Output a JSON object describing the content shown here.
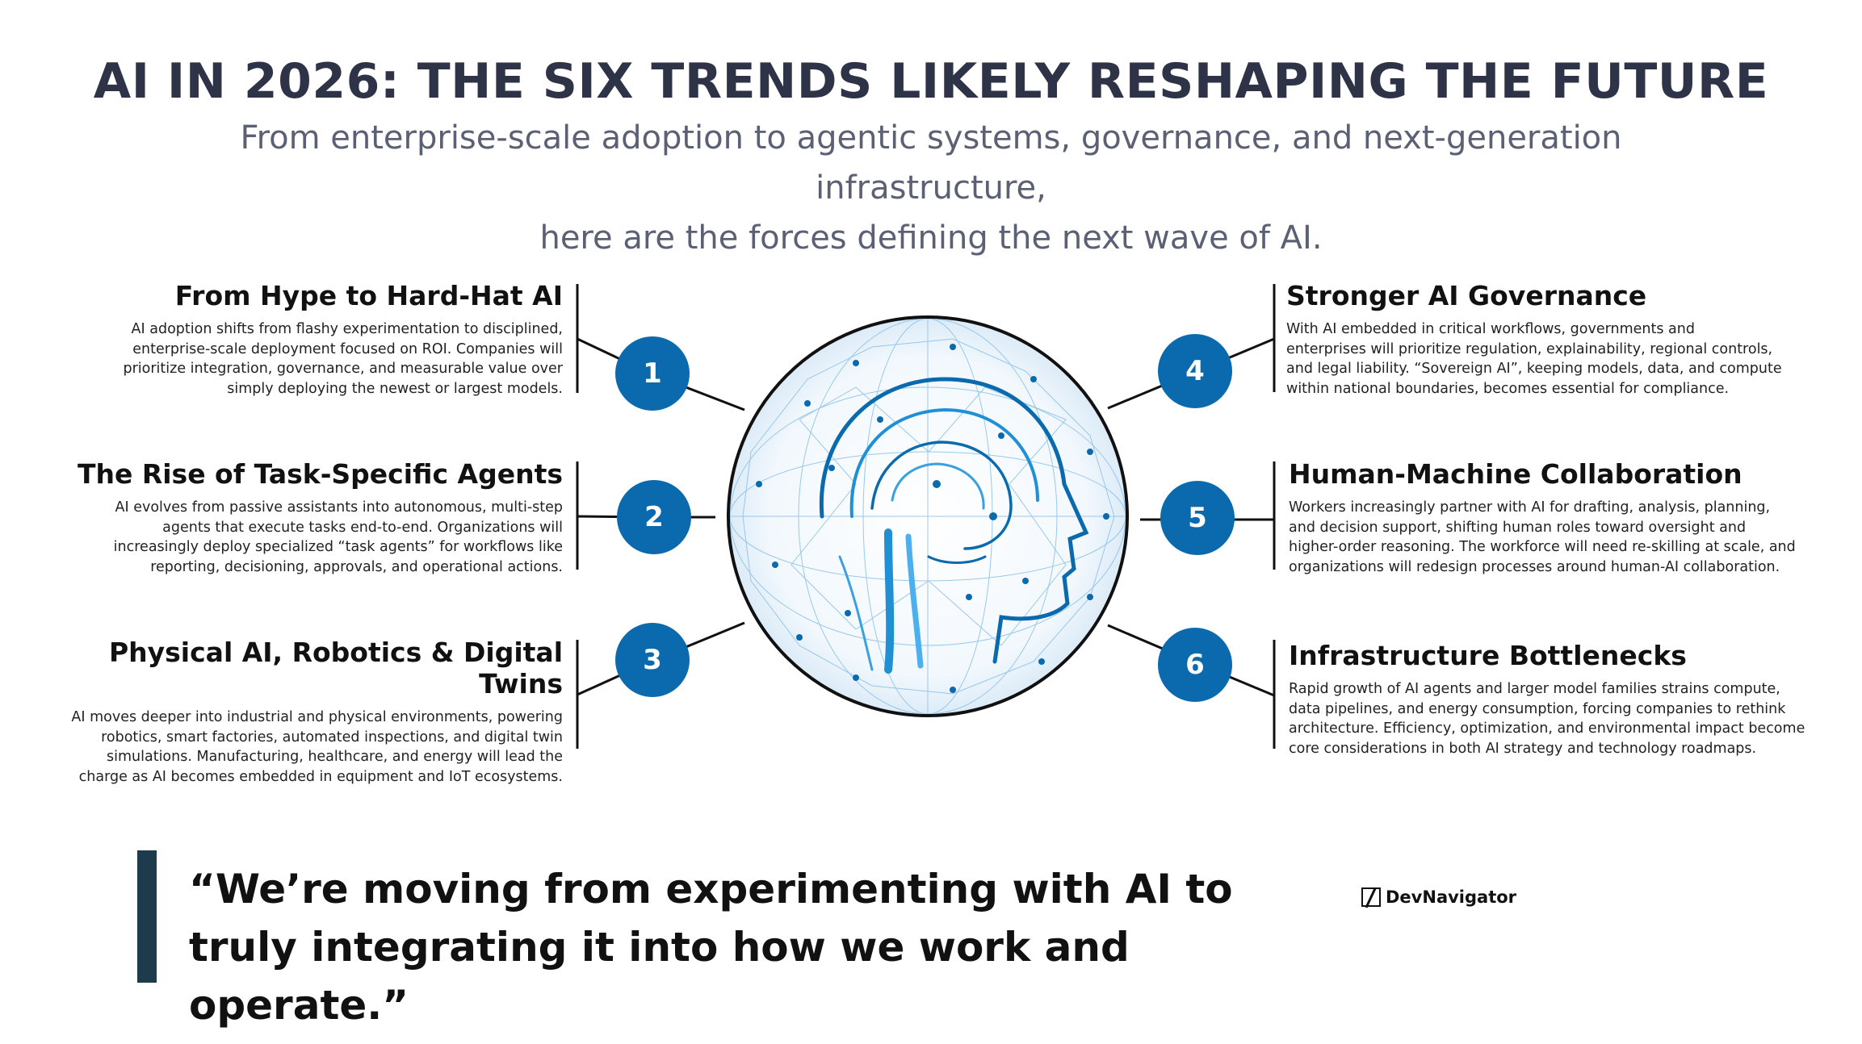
{
  "header": {
    "title": "AI IN 2026: THE SIX TRENDS LIKELY RESHAPING THE FUTURE",
    "subtitle_line1": "From enterprise-scale adoption to agentic systems, governance, and next-generation infrastructure,",
    "subtitle_line2": "here are the forces defining the next wave of AI."
  },
  "trends": [
    {
      "number": "1",
      "title": "From Hype to Hard-Hat AI",
      "lines": [
        "AI adoption shifts from flashy experimentation to disciplined,",
        "enterprise-scale deployment focused on ROI. Companies will",
        "prioritize integration, governance, and measurable value over",
        "simply deploying the newest or largest models."
      ]
    },
    {
      "number": "2",
      "title": "The Rise of Task-Specific Agents",
      "lines": [
        "AI evolves from passive assistants into autonomous, multi-step",
        "agents that execute tasks end-to-end. Organizations will",
        "increasingly deploy specialized “task agents” for workflows like",
        "reporting, decisioning, approvals, and operational actions."
      ]
    },
    {
      "number": "3",
      "title": "Physical AI, Robotics & Digital Twins",
      "lines": [
        "AI moves deeper into industrial and physical environments, powering",
        "robotics, smart factories, automated inspections, and digital twin",
        "simulations. Manufacturing, healthcare, and energy will lead the",
        "charge as AI becomes embedded in equipment and IoT ecosystems."
      ]
    },
    {
      "number": "4",
      "title": "Stronger AI Governance",
      "lines": [
        "With AI embedded in critical workflows, governments and",
        "enterprises will prioritize regulation, explainability, regional controls,",
        "and legal liability. “Sovereign AI”, keeping models, data, and compute",
        "within national boundaries, becomes essential for compliance."
      ]
    },
    {
      "number": "5",
      "title": "Human-Machine Collaboration",
      "lines": [
        "Workers increasingly partner with AI for drafting, analysis, planning,",
        "and decision support, shifting human roles toward oversight and",
        "higher-order reasoning. The workforce will need re-skilling at scale, and",
        "organizations will redesign processes around human-AI collaboration."
      ]
    },
    {
      "number": "6",
      "title": "Infrastructure Bottlenecks",
      "lines": [
        "Rapid growth of AI agents and larger model families strains compute,",
        "data pipelines, and energy consumption, forcing companies to rethink",
        "architecture. Efficiency, optimization, and environmental impact become",
        "core considerations in both AI strategy and technology roadmaps."
      ]
    }
  ],
  "quote": {
    "line1": "“We’re moving from experimenting with AI to",
    "line2": "truly integrating it into how we work and operate.”"
  },
  "brand": {
    "name": "DevNavigator"
  },
  "colors": {
    "accent": "#0b6aad",
    "title": "#2e3347",
    "subtitle": "#5b6075",
    "quote_bar": "#1e3a4d"
  },
  "icons": {
    "center": "brain-network-sphere-icon",
    "logo": "slash-box-icon"
  }
}
